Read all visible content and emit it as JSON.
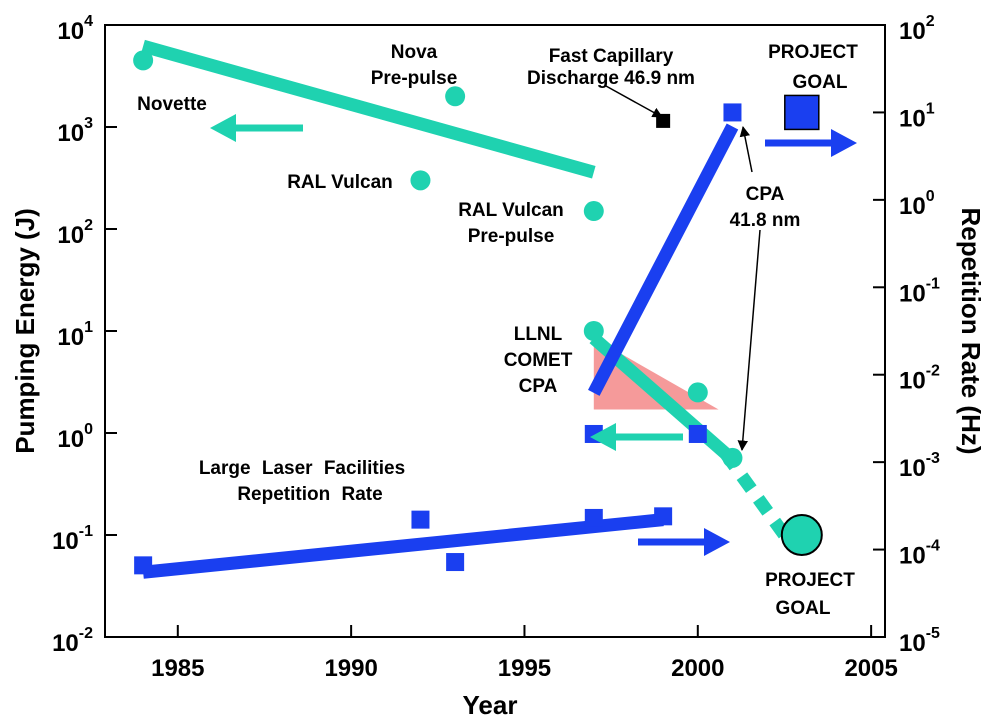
{
  "chart_data": {
    "type": "scatter",
    "x_label": "Year",
    "y_label": "Pumping Energy (J)",
    "y_label_color": "#1fd2b0",
    "y2_label": "Repetition Rate (Hz)",
    "y2_label_color": "#1a3ff0",
    "xlim": [
      1982.9,
      2005.4
    ],
    "xticks": [
      1985,
      1990,
      1995,
      2000,
      2005
    ],
    "log_y": true,
    "ylim": [
      0.01,
      10000
    ],
    "yticks": [
      {
        "value": 0.01,
        "label": "10",
        "exponent": "-2"
      },
      {
        "value": 0.1,
        "label": "10",
        "exponent": "-1"
      },
      {
        "value": 1,
        "label": "10",
        "exponent": "0"
      },
      {
        "value": 10,
        "label": "10",
        "exponent": "1"
      },
      {
        "value": 100,
        "label": "10",
        "exponent": "2"
      },
      {
        "value": 1000,
        "label": "10",
        "exponent": "3"
      },
      {
        "value": 10000,
        "label": "10",
        "exponent": "4"
      }
    ],
    "y2lim": [
      1e-05,
      100
    ],
    "y2ticks": [
      {
        "value": 1e-05,
        "label": "10",
        "exponent": "-5"
      },
      {
        "value": 0.0001,
        "label": "10",
        "exponent": "-4"
      },
      {
        "value": 0.001,
        "label": "10",
        "exponent": "-3"
      },
      {
        "value": 0.01,
        "label": "10",
        "exponent": "-2"
      },
      {
        "value": 0.1,
        "label": "10",
        "exponent": "-1"
      },
      {
        "value": 1,
        "label": "10",
        "exponent": "0"
      },
      {
        "value": 10,
        "label": "10",
        "exponent": "1"
      },
      {
        "value": 100,
        "label": "10",
        "exponent": "2"
      }
    ],
    "shaded_region": {
      "x": [
        1997,
        1997,
        2000.6
      ],
      "values": [
        8.5,
        1.7,
        1.7
      ],
      "color": "#f59a9a",
      "axis": "y"
    },
    "trend_lines": [
      {
        "x": [
          1984,
          1997
        ],
        "values": [
          6200,
          360
        ],
        "axis": "y",
        "color": "#1fd2b0",
        "style": "solid"
      },
      {
        "x": [
          1997,
          2000.8
        ],
        "values": [
          8.5,
          0.63
        ],
        "axis": "y",
        "color": "#1fd2b0",
        "style": "solid"
      },
      {
        "x": [
          2000.8,
          2002.5
        ],
        "values": [
          0.63,
          0.1
        ],
        "axis": "y",
        "color": "#1fd2b0",
        "style": "dashed"
      },
      {
        "x": [
          1984,
          1999
        ],
        "values": [
          5.5e-05,
          0.00022
        ],
        "axis": "y2",
        "color": "#1a3ff0",
        "style": "solid"
      },
      {
        "x": [
          1997,
          2001
        ],
        "values": [
          0.0062,
          6.9
        ],
        "axis": "y2",
        "color": "#1a3ff0",
        "style": "solid"
      }
    ],
    "series": [
      {
        "x": [
          1984,
          1993,
          1992,
          1997,
          1997,
          2000,
          2001
        ],
        "values": [
          4500,
          2000,
          300,
          150,
          10,
          2.5,
          0.57
        ],
        "axis": "y",
        "color": "#1fd2b0",
        "marker": "circle"
      },
      {
        "x": [
          2003
        ],
        "values": [
          0.1
        ],
        "axis": "y",
        "color": "#1fd2b0",
        "marker": "big-circle"
      },
      {
        "x": [
          1984,
          1992,
          1993,
          1997,
          1999,
          1997,
          2000,
          2001
        ],
        "values": [
          6.6e-05,
          0.00022,
          7.2e-05,
          0.00023,
          0.00024,
          0.0021,
          0.0021,
          10
        ],
        "axis": "y2",
        "color": "#1a3ff0",
        "marker": "square"
      },
      {
        "x": [
          1999
        ],
        "values": [
          8
        ],
        "axis": "y2",
        "color": "#000000",
        "marker": "small-square"
      },
      {
        "x": [
          2003
        ],
        "values": [
          10
        ],
        "axis": "y2",
        "color": "#1a3ff0",
        "marker": "big-square"
      }
    ],
    "annotations": [
      {
        "lines": [
          "Novette"
        ]
      },
      {
        "lines": [
          "Nova",
          "Pre-pulse"
        ]
      },
      {
        "lines": [
          "RAL Vulcan"
        ]
      },
      {
        "lines": [
          "RAL Vulcan",
          "Pre-pulse"
        ]
      },
      {
        "lines": [
          "LLNL",
          "COMET",
          "CPA"
        ]
      },
      {
        "lines": [
          "Large Laser Facilities",
          "Repetition Rate"
        ]
      },
      {
        "lines": [
          "Fast Capillary",
          "Discharge 46.9 nm"
        ]
      },
      {
        "lines": [
          "CPA",
          "41.8 nm"
        ]
      },
      {
        "lines": [
          "PROJECT",
          "GOAL"
        ],
        "color": "#ff3a1a"
      },
      {
        "lines": [
          "PROJECT",
          "GOAL"
        ],
        "color": "#ff3a1a"
      }
    ]
  }
}
